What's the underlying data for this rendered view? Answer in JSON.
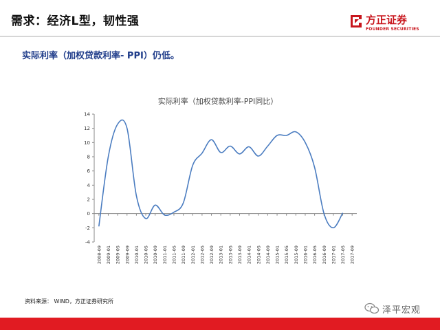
{
  "slide": {
    "title": "需求：经济L型，韧性强",
    "subtitle": "实际利率（加权贷款利率- PPI）仍低。",
    "source": "资料来源： WIND，方正证券研究所"
  },
  "logo": {
    "name_cn": "方正证券",
    "name_en": "FOUNDER SECURITIES",
    "color": "#c8161d"
  },
  "watermark": {
    "text": "泽平宏观",
    "icon": "wechat-icon"
  },
  "colors": {
    "footer": "#e11b22",
    "subtitle": "#1f3c8a",
    "line": "#4a7cc0"
  },
  "chart_data": {
    "type": "line",
    "title": "实际利率（加权贷款利率-PPI同比）",
    "xlabel": "",
    "ylabel": "",
    "ylim": [
      -4,
      14
    ],
    "yticks": [
      -4,
      -2,
      0,
      2,
      4,
      6,
      8,
      10,
      12,
      14
    ],
    "grid": false,
    "legend": "none",
    "x": [
      "2008-09",
      "2009-01",
      "2009-05",
      "2009-09",
      "2010-01",
      "2010-05",
      "2010-09",
      "2011-01",
      "2011-05",
      "2011-09",
      "2012-01",
      "2012-05",
      "2012-09",
      "2013-01",
      "2013-05",
      "2013-09",
      "2014-01",
      "2014-05",
      "2014-09",
      "2015-01",
      "2015-05",
      "2015-09",
      "2016-01",
      "2016-05",
      "2016-09",
      "2017-01",
      "2017-05",
      "2017-09"
    ],
    "series": [
      {
        "values": [
          -1.8,
          8.0,
          12.6,
          12.0,
          2.5,
          -0.7,
          1.2,
          -0.2,
          0.2,
          1.5,
          6.8,
          8.5,
          10.4,
          8.6,
          9.5,
          8.4,
          9.4,
          8.1,
          9.5,
          11.0,
          11.0,
          11.5,
          10.0,
          6.5,
          0.0,
          -2.0,
          0.1,
          null
        ]
      }
    ]
  }
}
